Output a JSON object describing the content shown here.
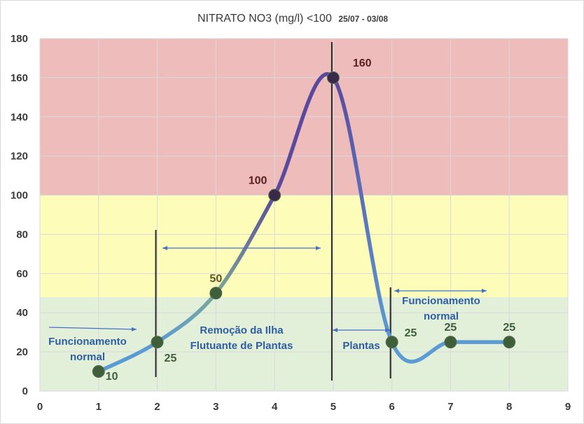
{
  "chart_data": {
    "type": "line",
    "title": "NITRATO NO3 (mg/l) <100",
    "subtitle": "25/07 - 03/08",
    "xlim": [
      0,
      9
    ],
    "ylim": [
      0,
      180
    ],
    "x_ticks": [
      "0",
      "1",
      "2",
      "3",
      "4",
      "5",
      "6",
      "7",
      "8",
      "9"
    ],
    "y_ticks": [
      "0",
      "20",
      "40",
      "60",
      "80",
      "100",
      "120",
      "140",
      "160",
      "180"
    ],
    "grid": true,
    "series": [
      {
        "x": [
          1,
          2,
          3,
          4,
          5,
          6,
          7,
          8
        ],
        "values": [
          10,
          25,
          50,
          100,
          160,
          25,
          25,
          25
        ],
        "labels": [
          "10",
          "25",
          "50",
          "100",
          "160",
          "25",
          "25",
          "25"
        ]
      }
    ],
    "bands": [
      {
        "from": 0,
        "to": 48,
        "color": "#e2efd9"
      },
      {
        "from": 48,
        "to": 100,
        "color": "#fdfdb9"
      },
      {
        "from": 100,
        "to": 180,
        "color": "#efbcbc"
      }
    ],
    "vertical_lines": [
      2,
      5,
      6
    ],
    "annotations": [
      {
        "text_lines": [
          "Funcionamento",
          "normal"
        ]
      },
      {
        "text_lines": [
          "Remoção da Ilha",
          "Flutuante de Plantas"
        ]
      },
      {
        "text_lines": [
          "Plantas"
        ]
      },
      {
        "text_lines": [
          "Funcionamento",
          "normal"
        ]
      }
    ],
    "colors": {
      "line_low": "#5b9bd5",
      "line_mid": "#7aa89a",
      "line_high": "#5a4a9e",
      "marker": "#3f5f3a",
      "marker_high": "#3a2a4a",
      "label_high": "#5a2020",
      "label_mid": "#5a5a20",
      "label_low": "#3f5f3a",
      "arrow": "#4472c4",
      "annotation": "#2e5fa3"
    }
  }
}
